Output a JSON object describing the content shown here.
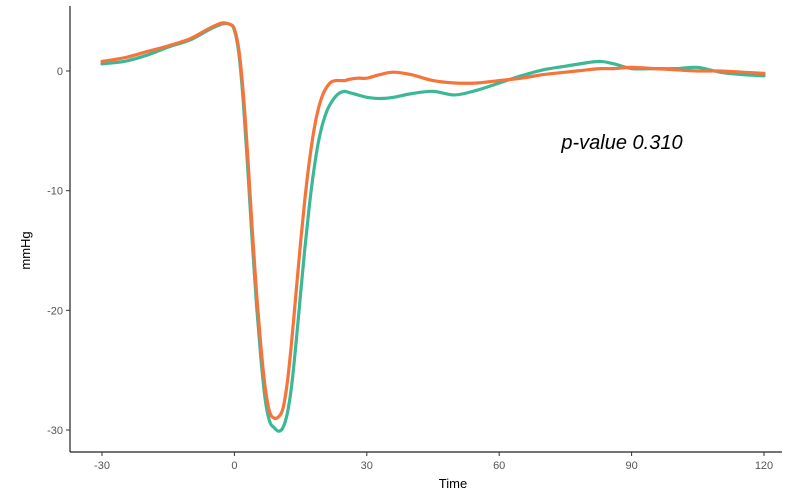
{
  "chart_data": {
    "type": "line",
    "xlabel": "Time",
    "ylabel": "mmHg",
    "xlim": [
      -31,
      122
    ],
    "ylim": [
      -31,
      5
    ],
    "x_ticks": [
      -30,
      0,
      30,
      60,
      90,
      120
    ],
    "x_tick_labels": [
      "-30",
      "0",
      "30",
      "60",
      "90",
      "120"
    ],
    "y_ticks": [
      0,
      -10,
      -20,
      -30
    ],
    "y_tick_labels": [
      "0",
      "-10",
      "-20",
      "-30"
    ],
    "grid": false,
    "legend": "none",
    "annotation": "p-value 0.310",
    "series": [
      {
        "color": "#3cb896",
        "x": [
          -30,
          -25,
          -20,
          -15,
          -10,
          -6,
          -3,
          -1,
          0,
          1,
          2,
          3,
          4,
          5,
          6,
          7,
          8,
          9,
          10,
          11,
          12,
          13,
          14,
          15,
          16,
          17,
          18,
          19,
          20,
          21,
          22,
          23,
          24,
          25,
          26,
          28,
          30,
          33,
          36,
          40,
          45,
          50,
          55,
          60,
          65,
          70,
          75,
          80,
          83,
          86,
          90,
          95,
          100,
          105,
          110,
          115,
          120
        ],
        "y": [
          0.6,
          0.8,
          1.3,
          2.0,
          2.6,
          3.4,
          3.9,
          3.9,
          3.4,
          1.5,
          -2.5,
          -8.0,
          -14.0,
          -19.5,
          -24.0,
          -27.5,
          -29.3,
          -29.8,
          -30.1,
          -29.8,
          -28.6,
          -26.2,
          -22.6,
          -18.6,
          -14.7,
          -11.2,
          -8.3,
          -6.0,
          -4.4,
          -3.3,
          -2.6,
          -2.1,
          -1.8,
          -1.7,
          -1.8,
          -2.0,
          -2.2,
          -2.3,
          -2.2,
          -1.9,
          -1.7,
          -2.0,
          -1.6,
          -1.0,
          -0.4,
          0.1,
          0.4,
          0.7,
          0.8,
          0.6,
          0.2,
          0.2,
          0.2,
          0.3,
          -0.1,
          -0.3,
          -0.4
        ]
      },
      {
        "color": "#f4743b",
        "x": [
          -30,
          -25,
          -20,
          -15,
          -10,
          -6,
          -3,
          -1,
          0,
          1,
          2,
          3,
          4,
          5,
          6,
          7,
          8,
          9,
          10,
          11,
          12,
          13,
          14,
          15,
          16,
          17,
          18,
          19,
          20,
          21,
          22,
          23,
          24,
          25,
          26,
          28,
          30,
          33,
          36,
          40,
          45,
          50,
          55,
          60,
          65,
          70,
          75,
          80,
          83,
          86,
          90,
          95,
          100,
          105,
          110,
          115,
          120
        ],
        "y": [
          0.8,
          1.1,
          1.6,
          2.1,
          2.7,
          3.5,
          4.0,
          3.9,
          3.5,
          1.8,
          -1.8,
          -7.0,
          -13.0,
          -18.5,
          -23.0,
          -26.5,
          -28.5,
          -29.0,
          -28.9,
          -28.2,
          -26.0,
          -22.5,
          -18.4,
          -14.3,
          -10.6,
          -7.5,
          -5.0,
          -3.2,
          -2.0,
          -1.3,
          -0.9,
          -0.8,
          -0.8,
          -0.8,
          -0.7,
          -0.6,
          -0.6,
          -0.3,
          -0.1,
          -0.3,
          -0.8,
          -1.0,
          -1.0,
          -0.8,
          -0.6,
          -0.3,
          -0.1,
          0.1,
          0.2,
          0.2,
          0.3,
          0.2,
          0.1,
          0.0,
          0.0,
          -0.1,
          -0.2
        ]
      }
    ]
  }
}
